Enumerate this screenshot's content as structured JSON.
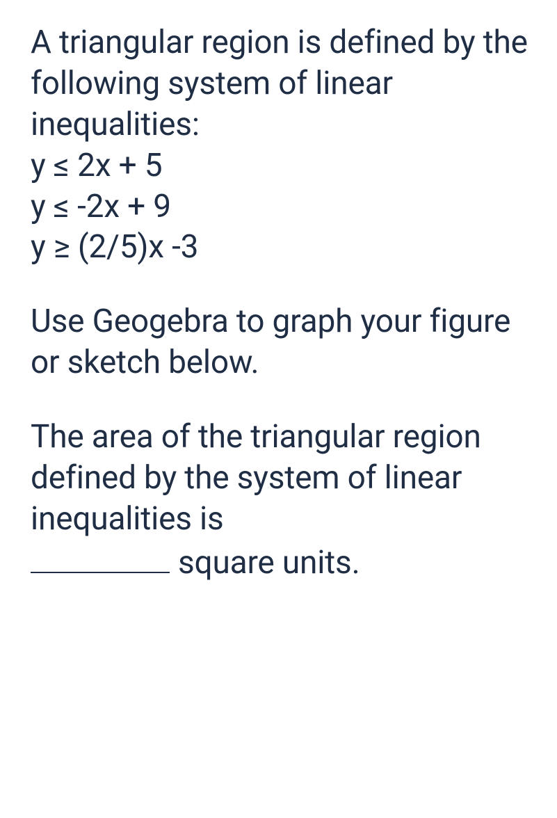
{
  "text_color": "#1f2e44",
  "background_color": "#ffffff",
  "font_size_pt": 35,
  "paragraph1": "A triangular region is defined by the following system of linear inequalities:",
  "inequalities": {
    "line1": "y ≤ 2x + 5",
    "line2": "y ≤ -2x + 9",
    "line3": "y ≥ (2/5)x -3"
  },
  "paragraph2": "Use Geogebra to graph your figure or sketch below.",
  "paragraph3_part1": "The area of the triangular region defined by the system of linear inequalities is",
  "paragraph3_blank_value": "",
  "paragraph3_part2": "square units."
}
